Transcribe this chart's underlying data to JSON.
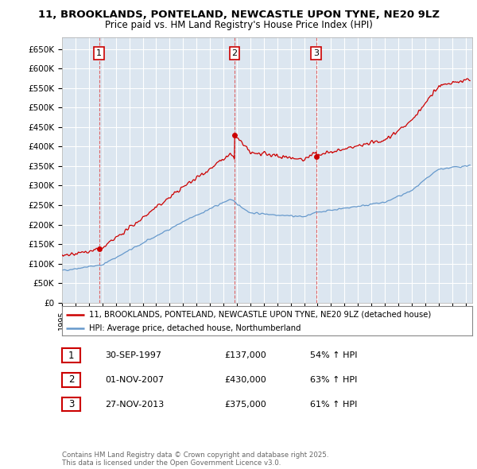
{
  "title_line1": "11, BROOKLANDS, PONTELAND, NEWCASTLE UPON TYNE, NE20 9LZ",
  "title_line2": "Price paid vs. HM Land Registry's House Price Index (HPI)",
  "ylim": [
    0,
    680000
  ],
  "yticks": [
    0,
    50000,
    100000,
    150000,
    200000,
    250000,
    300000,
    350000,
    400000,
    450000,
    500000,
    550000,
    600000,
    650000
  ],
  "ytick_labels": [
    "£0",
    "£50K",
    "£100K",
    "£150K",
    "£200K",
    "£250K",
    "£300K",
    "£350K",
    "£400K",
    "£450K",
    "£500K",
    "£550K",
    "£600K",
    "£650K"
  ],
  "xlim_start": 1995.0,
  "xlim_end": 2025.5,
  "xticks": [
    1995,
    1996,
    1997,
    1998,
    1999,
    2000,
    2001,
    2002,
    2003,
    2004,
    2005,
    2006,
    2007,
    2008,
    2009,
    2010,
    2011,
    2012,
    2013,
    2014,
    2015,
    2016,
    2017,
    2018,
    2019,
    2020,
    2021,
    2022,
    2023,
    2024,
    2025
  ],
  "background_color": "#ffffff",
  "plot_bg_color": "#dce6f0",
  "grid_color": "#ffffff",
  "red_color": "#cc0000",
  "blue_color": "#6699cc",
  "sale_dates": [
    1997.75,
    2007.83,
    2013.9
  ],
  "sale_prices": [
    137000,
    430000,
    375000
  ],
  "sale_labels": [
    "1",
    "2",
    "3"
  ],
  "vline_color": "#dd4444",
  "legend_label_red": "11, BROOKLANDS, PONTELAND, NEWCASTLE UPON TYNE, NE20 9LZ (detached house)",
  "legend_label_blue": "HPI: Average price, detached house, Northumberland",
  "table_rows": [
    [
      "1",
      "30-SEP-1997",
      "£137,000",
      "54% ↑ HPI"
    ],
    [
      "2",
      "01-NOV-2007",
      "£430,000",
      "63% ↑ HPI"
    ],
    [
      "3",
      "27-NOV-2013",
      "£375,000",
      "61% ↑ HPI"
    ]
  ],
  "footer_text": "Contains HM Land Registry data © Crown copyright and database right 2025.\nThis data is licensed under the Open Government Licence v3.0."
}
